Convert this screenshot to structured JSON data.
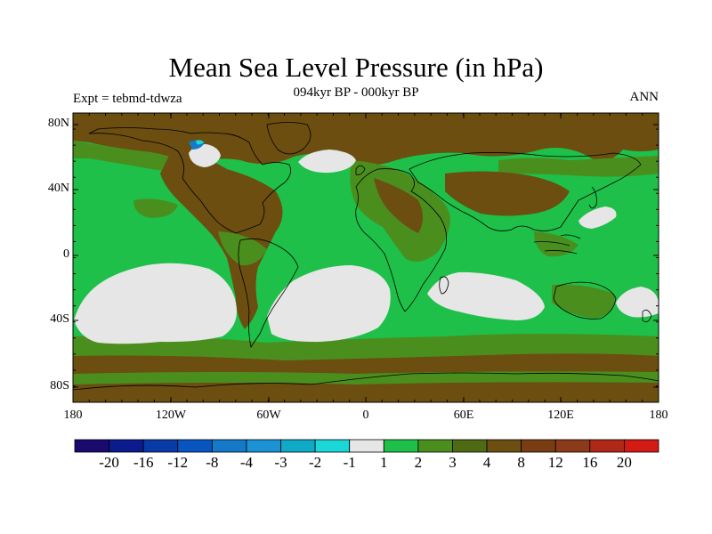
{
  "title": "Mean Sea Level Pressure (in hPa)",
  "subtitle": "094kyr BP - 000kyr BP",
  "left_label": "Expt = tebmd-tdwza",
  "right_label": "ANN",
  "lat_ticks": [
    "80N",
    "40N",
    "0",
    "40S",
    "80S"
  ],
  "lon_ticks": [
    "180",
    "120W",
    "60W",
    "0",
    "60E",
    "120E",
    "180"
  ],
  "colorbar": {
    "colors": [
      "#1a0a6e",
      "#0b1a8c",
      "#0a3aa8",
      "#0855c0",
      "#1479c8",
      "#1a92d4",
      "#0faac8",
      "#1ad8d8",
      "#e6e6e6",
      "#1ec04a",
      "#4a8f1e",
      "#4e6b14",
      "#6b4e10",
      "#7a3c12",
      "#8b3a1a",
      "#b02818",
      "#d41a14"
    ],
    "labels": [
      "-20",
      "-16",
      "-12",
      "-8",
      "-4",
      "-3",
      "-2",
      "-1",
      "1",
      "2",
      "3",
      "4",
      "8",
      "12",
      "16",
      "20"
    ]
  },
  "fill_colors": {
    "background": "#1ec04a",
    "brown": "#6b4e10",
    "olive": "#4a8f1e",
    "gray": "#e6e6e6",
    "blue": "#1479c8",
    "cyan": "#1ad8d8"
  }
}
